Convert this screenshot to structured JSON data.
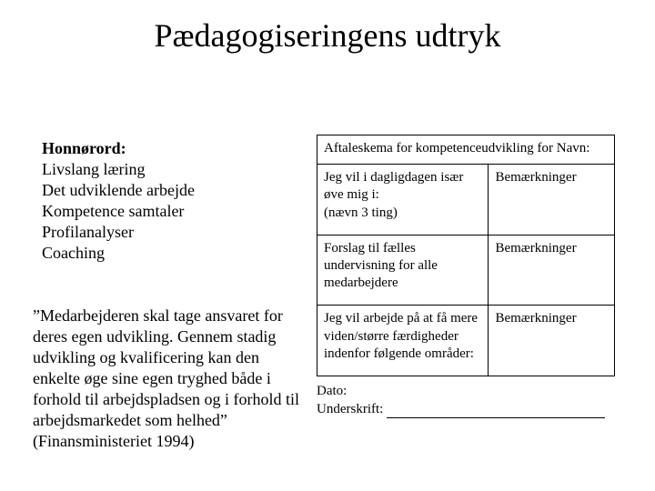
{
  "title": "Pædagogiseringens udtryk",
  "left": {
    "honnor_label": "Honnørord:",
    "items": [
      "Livslang læring",
      "Det udviklende arbejde",
      "Kompetence samtaler",
      "Profilanalyser",
      "Coaching"
    ]
  },
  "quote": "”Medarbejderen skal tage ansvaret for deres egen udvikling. Gennem stadig udvikling og kvalificering kan den enkelte øge sine egen tryghed både i forhold til arbejdspladsen og i forhold til arbejdsmarkedet som helhed” (Finansministeriet 1994)",
  "table": {
    "header": "Aftaleskema for kompetenceudvikling for Navn:",
    "rows": [
      {
        "left": "Jeg vil i dagligdagen især øve mig i:\n(nævn 3 ting)",
        "right": "Bemærkninger"
      },
      {
        "left": "Forslag til fælles undervisning for alle medarbejdere",
        "right": "Bemærkninger"
      },
      {
        "left": "Jeg vil arbejde på at få mere viden/større færdigheder indenfor følgende områder:",
        "right": "Bemærkninger"
      }
    ]
  },
  "footer": {
    "dato": "Dato:",
    "underskrift": "Underskrift:"
  },
  "colors": {
    "text": "#000000",
    "background": "#ffffff",
    "border": "#000000"
  },
  "fonts": {
    "title_size_pt": 36,
    "body_size_pt": 18,
    "table_size_pt": 15,
    "family": "Times New Roman"
  }
}
